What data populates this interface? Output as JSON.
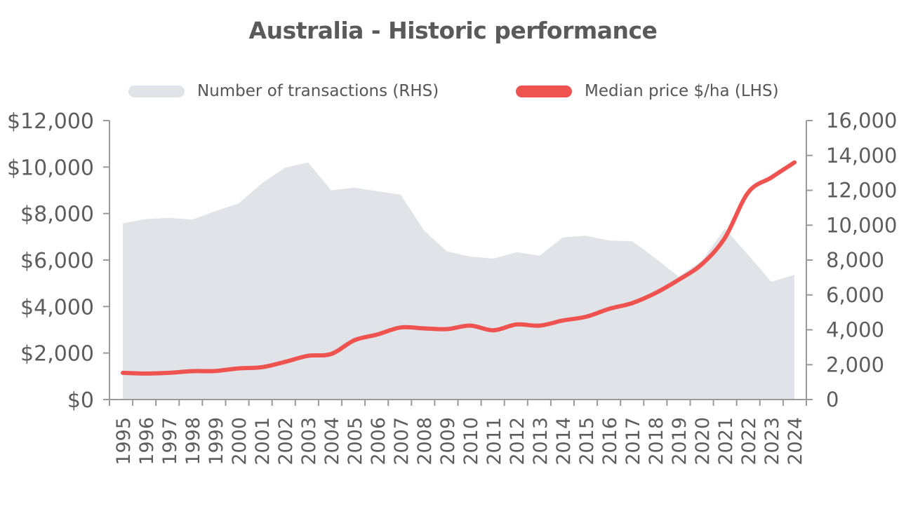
{
  "chart_data": {
    "type": "line",
    "title": "Australia - Historic performance",
    "categories": [
      "1995",
      "1996",
      "1997",
      "1998",
      "1999",
      "2000",
      "2001",
      "2002",
      "2003",
      "2004",
      "2005",
      "2006",
      "2007",
      "2008",
      "2009",
      "2010",
      "2011",
      "2012",
      "2013",
      "2014",
      "2015",
      "2016",
      "2017",
      "2018",
      "2019",
      "2020",
      "2021",
      "2022",
      "2023",
      "2024"
    ],
    "series": [
      {
        "name": "Number of transactions (RHS)",
        "type": "area",
        "axis": "right",
        "color": "#e0e3e7",
        "values": [
          10100,
          10350,
          10420,
          10320,
          10800,
          11250,
          12400,
          13300,
          13600,
          12000,
          12150,
          11950,
          11750,
          9700,
          8500,
          8200,
          8080,
          8450,
          8250,
          9300,
          9400,
          9120,
          9080,
          8100,
          7050,
          7950,
          9800,
          8300,
          6750,
          7150
        ]
      },
      {
        "name": "Median price $/ha (LHS)",
        "type": "line",
        "axis": "left",
        "color": "#ef5350",
        "values": [
          1150,
          1120,
          1150,
          1220,
          1230,
          1340,
          1390,
          1620,
          1880,
          1960,
          2550,
          2800,
          3100,
          3060,
          3030,
          3180,
          2980,
          3230,
          3180,
          3400,
          3560,
          3900,
          4150,
          4580,
          5150,
          5820,
          6960,
          8900,
          9550,
          10200
        ]
      }
    ],
    "y_left": {
      "range": [
        0,
        12000
      ],
      "ticks": [
        "$0",
        "$2,000",
        "$4,000",
        "$6,000",
        "$8,000",
        "$10,000",
        "$12,000"
      ]
    },
    "y_right": {
      "range": [
        0,
        16000
      ],
      "ticks": [
        "0",
        "2,000",
        "4,000",
        "6,000",
        "8,000",
        "10,000",
        "12,000",
        "14,000",
        "16,000"
      ]
    },
    "grid": false,
    "legend_position": "top"
  }
}
